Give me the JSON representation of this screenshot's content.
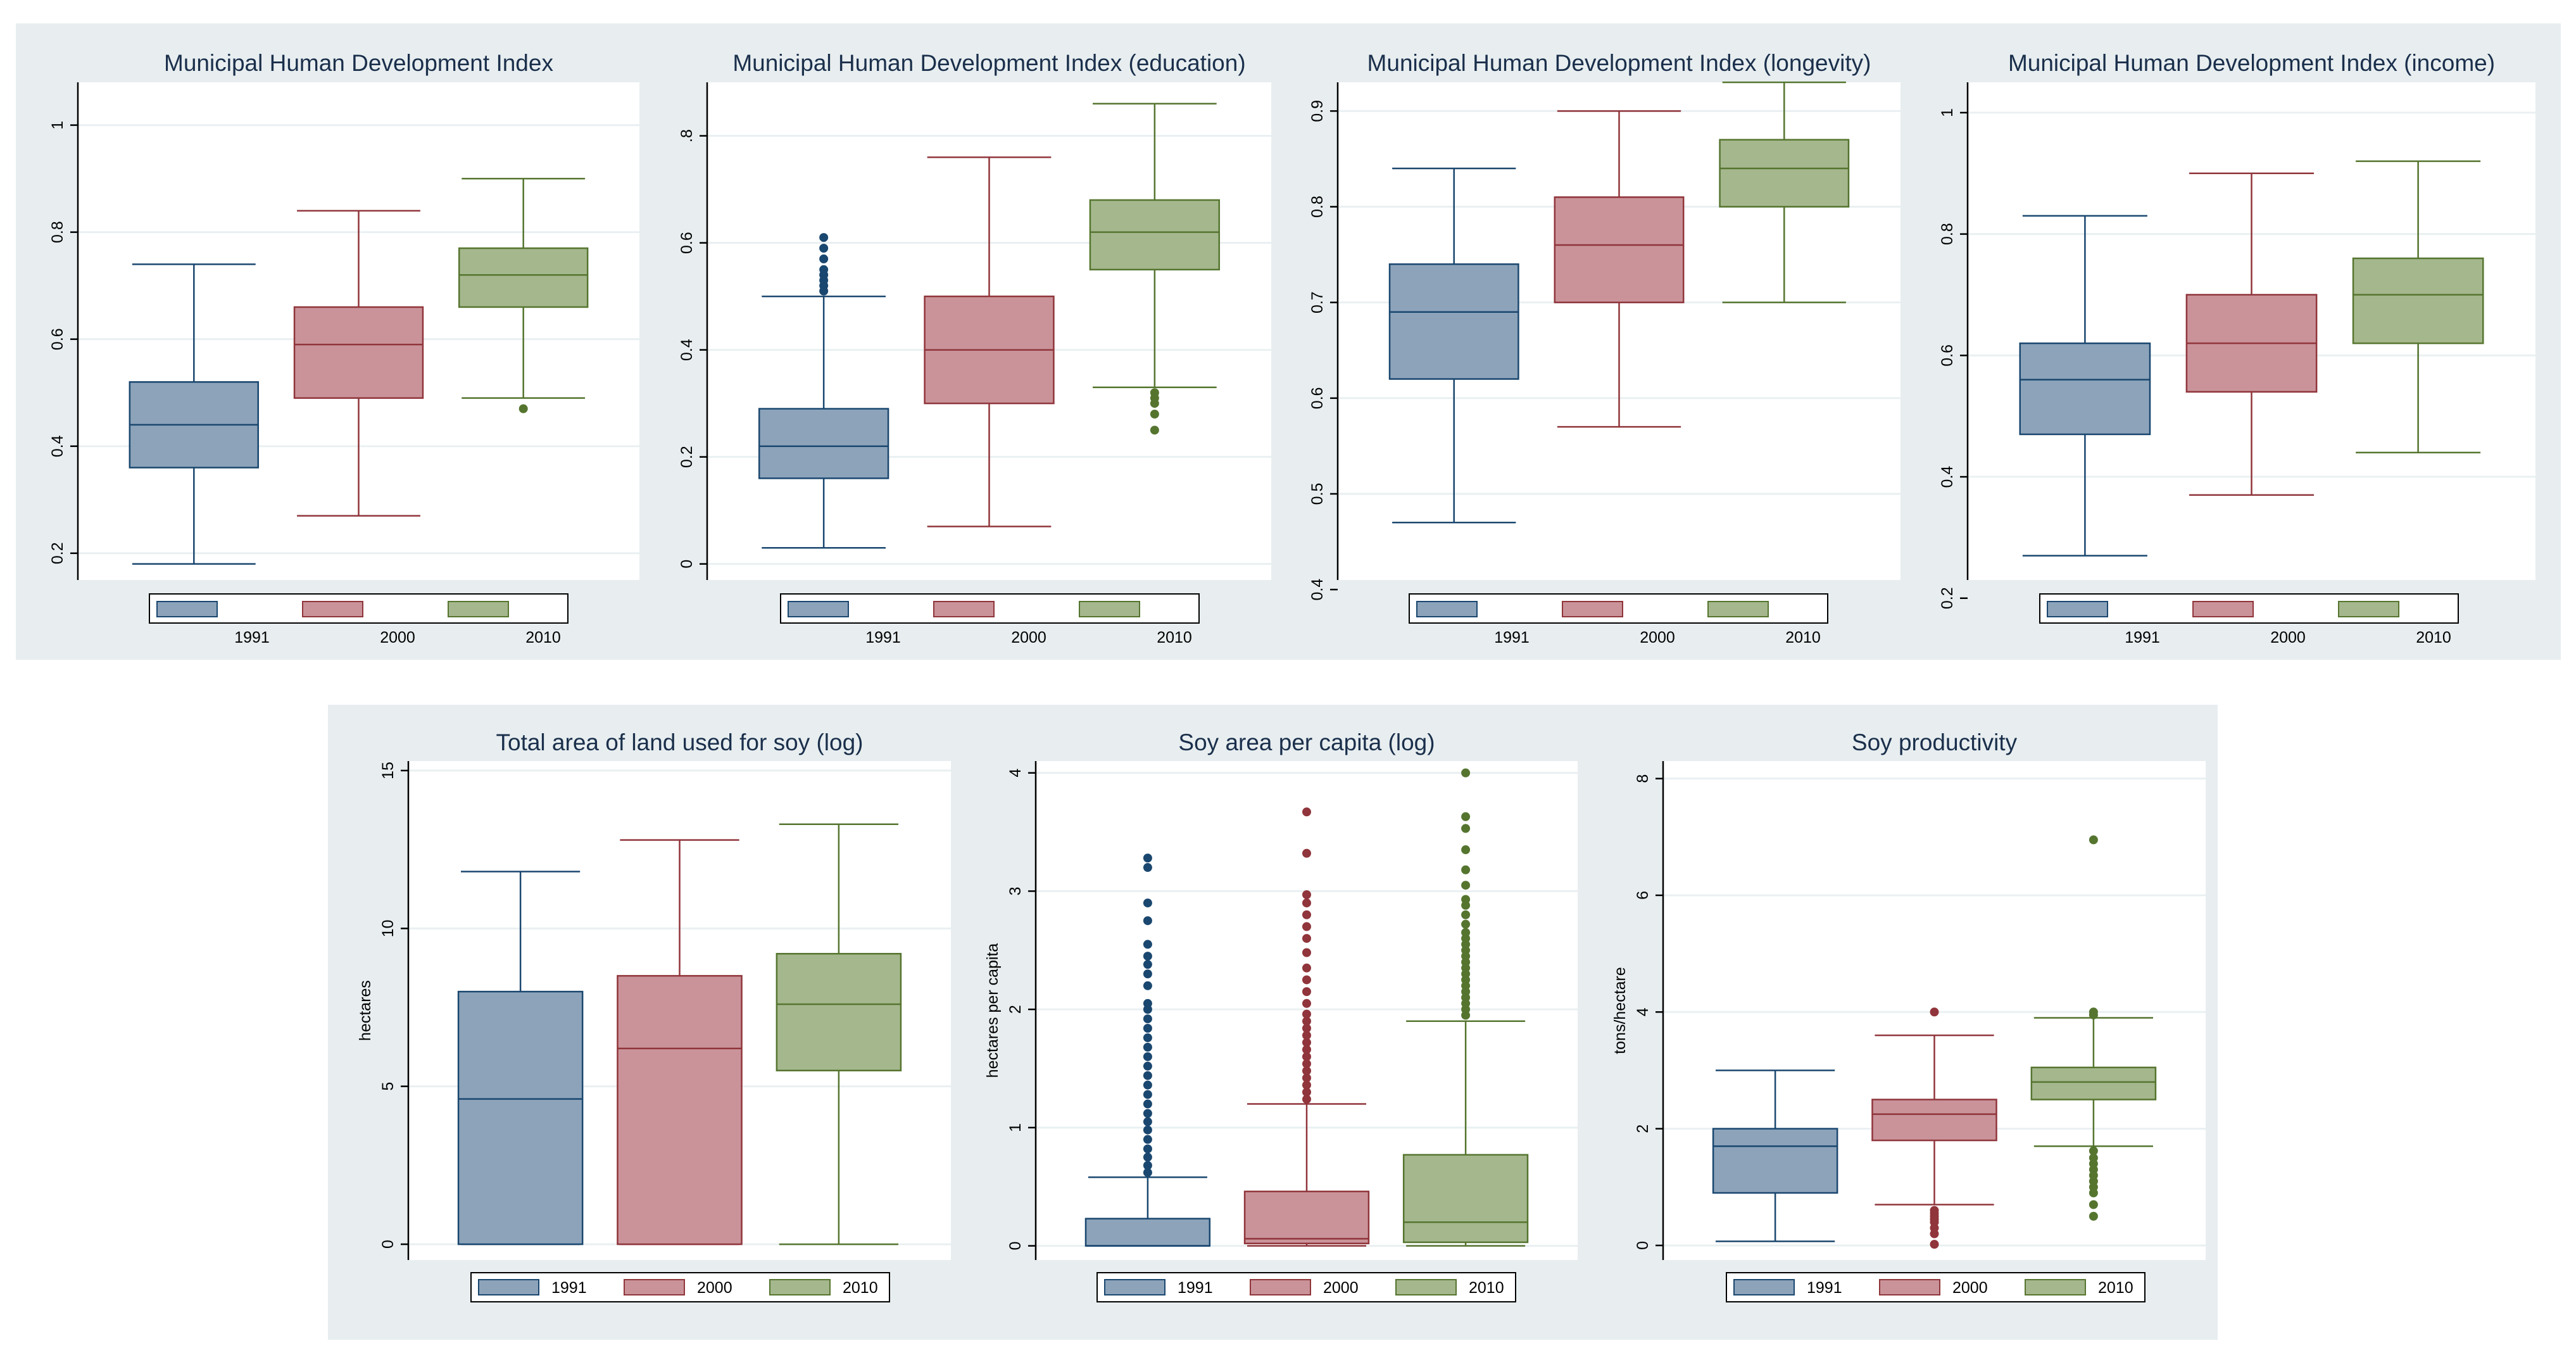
{
  "colors": {
    "panel_bg": "#e8eef0",
    "plot_bg": "#ffffff",
    "grid": "#eaf0f2",
    "axis": "#000000",
    "title": "#1a2f4b",
    "y1991_fill": "#8ca3ba",
    "y1991_line": "#1a476f",
    "y2000_fill": "#c99399",
    "y2000_line": "#90353b",
    "y2010_fill": "#a5b78d",
    "y2010_line": "#55752f"
  },
  "legend_labels": [
    "1991",
    "2000",
    "2010"
  ],
  "chart_data": [
    {
      "type": "box",
      "title": "Municipal Human Development Index",
      "ylabel": "",
      "ylim": [
        0.15,
        1.08
      ],
      "yticks": [
        "0.2",
        "0.4",
        "0.6",
        "0.8",
        "1"
      ],
      "ytick_values": [
        0.2,
        0.4,
        0.6,
        0.8,
        1
      ],
      "rotate_ticks": true,
      "legend_style": "below",
      "series": [
        {
          "name": "1991",
          "whisker_low": 0.18,
          "q1": 0.36,
          "median": 0.44,
          "q3": 0.52,
          "whisker_high": 0.74,
          "outliers": []
        },
        {
          "name": "2000",
          "whisker_low": 0.27,
          "q1": 0.49,
          "median": 0.59,
          "q3": 0.66,
          "whisker_high": 0.84,
          "outliers": []
        },
        {
          "name": "2010",
          "whisker_low": 0.49,
          "q1": 0.66,
          "median": 0.72,
          "q3": 0.77,
          "whisker_high": 0.9,
          "outliers": [
            0.47
          ]
        }
      ]
    },
    {
      "type": "box",
      "title": "Municipal Human Development Index (education)",
      "ylabel": "",
      "ylim": [
        -0.03,
        0.9
      ],
      "yticks": [
        "0",
        "0.2",
        "0.4",
        "0.6",
        ".8"
      ],
      "ytick_values": [
        0,
        0.2,
        0.4,
        0.6,
        0.8
      ],
      "rotate_ticks": true,
      "legend_style": "below",
      "series": [
        {
          "name": "1991",
          "whisker_low": 0.03,
          "q1": 0.16,
          "median": 0.22,
          "q3": 0.29,
          "whisker_high": 0.5,
          "outliers": [
            0.51,
            0.52,
            0.53,
            0.54,
            0.55,
            0.57,
            0.59,
            0.61
          ]
        },
        {
          "name": "2000",
          "whisker_low": 0.07,
          "q1": 0.3,
          "median": 0.4,
          "q3": 0.5,
          "whisker_high": 0.76,
          "outliers": []
        },
        {
          "name": "2010",
          "whisker_low": 0.33,
          "q1": 0.55,
          "median": 0.62,
          "q3": 0.68,
          "whisker_high": 0.86,
          "outliers": [
            0.32,
            0.31,
            0.3,
            0.28,
            0.25
          ]
        }
      ]
    },
    {
      "type": "box",
      "title": "Municipal Human Development Index (longevity)",
      "ylabel": "",
      "ylim": [
        0.41,
        0.93
      ],
      "yticks": [
        "0.4",
        "0.5",
        "0.6",
        "0.7",
        "0.8",
        "0.9"
      ],
      "ytick_values": [
        0.4,
        0.5,
        0.6,
        0.7,
        0.8,
        0.9
      ],
      "rotate_ticks": true,
      "legend_style": "below",
      "series": [
        {
          "name": "1991",
          "whisker_low": 0.47,
          "q1": 0.62,
          "median": 0.69,
          "q3": 0.74,
          "whisker_high": 0.84,
          "outliers": []
        },
        {
          "name": "2000",
          "whisker_low": 0.57,
          "q1": 0.7,
          "median": 0.76,
          "q3": 0.81,
          "whisker_high": 0.9,
          "outliers": []
        },
        {
          "name": "2010",
          "whisker_low": 0.7,
          "q1": 0.8,
          "median": 0.84,
          "q3": 0.87,
          "whisker_high": 0.93,
          "outliers": []
        }
      ]
    },
    {
      "type": "box",
      "title": "Municipal Human Development Index (income)",
      "ylabel": "",
      "ylim": [
        0.23,
        1.05
      ],
      "yticks": [
        "0.2",
        "0.4",
        "0.6",
        "0.8",
        "1"
      ],
      "ytick_values": [
        0.2,
        0.4,
        0.6,
        0.8,
        1
      ],
      "rotate_ticks": true,
      "legend_style": "below",
      "series": [
        {
          "name": "1991",
          "whisker_low": 0.27,
          "q1": 0.47,
          "median": 0.56,
          "q3": 0.62,
          "whisker_high": 0.83,
          "outliers": []
        },
        {
          "name": "2000",
          "whisker_low": 0.37,
          "q1": 0.54,
          "median": 0.62,
          "q3": 0.7,
          "whisker_high": 0.9,
          "outliers": []
        },
        {
          "name": "2010",
          "whisker_low": 0.44,
          "q1": 0.62,
          "median": 0.7,
          "q3": 0.76,
          "whisker_high": 0.92,
          "outliers": []
        }
      ]
    },
    {
      "type": "box",
      "title": "Total area of land used for soy (log)",
      "ylabel": "hectares",
      "ylim": [
        -0.5,
        15.3
      ],
      "yticks": [
        "0",
        "5",
        "10",
        "15"
      ],
      "ytick_values": [
        0,
        5,
        10,
        15
      ],
      "rotate_ticks": true,
      "legend_style": "inline",
      "series": [
        {
          "name": "1991",
          "whisker_low": 0,
          "q1": 0,
          "median": 4.6,
          "q3": 8.0,
          "whisker_high": 11.8,
          "outliers": []
        },
        {
          "name": "2000",
          "whisker_low": 0,
          "q1": 0,
          "median": 6.2,
          "q3": 8.5,
          "whisker_high": 12.8,
          "outliers": []
        },
        {
          "name": "2010",
          "whisker_low": 0,
          "q1": 5.5,
          "median": 7.6,
          "q3": 9.2,
          "whisker_high": 13.3,
          "outliers": []
        }
      ]
    },
    {
      "type": "box",
      "title": "Soy area per capita (log)",
      "ylabel": "hectares per capita",
      "ylim": [
        -0.12,
        4.1
      ],
      "yticks": [
        "0",
        "1",
        "2",
        "3",
        "4"
      ],
      "ytick_values": [
        0,
        1,
        2,
        3,
        4
      ],
      "rotate_ticks": true,
      "legend_style": "inline",
      "series": [
        {
          "name": "1991",
          "whisker_low": 0,
          "q1": 0,
          "median": 0,
          "q3": 0.23,
          "whisker_high": 0.58,
          "outliers": [
            0.62,
            0.68,
            0.75,
            0.82,
            0.9,
            0.98,
            1.05,
            1.12,
            1.2,
            1.28,
            1.36,
            1.44,
            1.52,
            1.6,
            1.68,
            1.76,
            1.84,
            1.92,
            2.0,
            2.05,
            2.2,
            2.3,
            2.38,
            2.45,
            2.55,
            2.75,
            2.9,
            3.2,
            3.28
          ]
        },
        {
          "name": "2000",
          "whisker_low": 0,
          "q1": 0.02,
          "median": 0.06,
          "q3": 0.46,
          "whisker_high": 1.2,
          "outliers": [
            1.24,
            1.3,
            1.36,
            1.42,
            1.48,
            1.54,
            1.6,
            1.66,
            1.72,
            1.78,
            1.84,
            1.9,
            1.96,
            2.05,
            2.15,
            2.25,
            2.35,
            2.48,
            2.6,
            2.7,
            2.8,
            2.9,
            2.97,
            3.32,
            3.67
          ]
        },
        {
          "name": "2010",
          "whisker_low": 0,
          "q1": 0.03,
          "median": 0.2,
          "q3": 0.77,
          "whisker_high": 1.9,
          "outliers": [
            1.95,
            2.0,
            2.05,
            2.1,
            2.15,
            2.2,
            2.25,
            2.3,
            2.35,
            2.4,
            2.45,
            2.5,
            2.55,
            2.6,
            2.65,
            2.72,
            2.8,
            2.88,
            2.93,
            3.05,
            3.18,
            3.35,
            3.53,
            3.63,
            4.0
          ]
        }
      ]
    },
    {
      "type": "box",
      "title": "Soy productivity",
      "ylabel": "tons/hectare",
      "ylim": [
        -0.25,
        8.3
      ],
      "yticks": [
        "0",
        "2",
        "4",
        "6",
        "8"
      ],
      "ytick_values": [
        0,
        2,
        4,
        6,
        8
      ],
      "rotate_ticks": true,
      "legend_style": "inline",
      "series": [
        {
          "name": "1991",
          "whisker_low": 0.07,
          "q1": 0.9,
          "median": 1.7,
          "q3": 2.0,
          "whisker_high": 3.0,
          "outliers": []
        },
        {
          "name": "2000",
          "whisker_low": 0.7,
          "q1": 1.8,
          "median": 2.25,
          "q3": 2.5,
          "whisker_high": 3.6,
          "outliers": [
            0.6,
            0.55,
            0.5,
            0.45,
            0.4,
            0.3,
            0.2,
            0.02,
            4.0
          ]
        },
        {
          "name": "2010",
          "whisker_low": 1.7,
          "q1": 2.5,
          "median": 2.8,
          "q3": 3.05,
          "whisker_high": 3.9,
          "outliers": [
            1.62,
            1.5,
            1.4,
            1.3,
            1.2,
            1.1,
            1.0,
            0.9,
            0.7,
            0.5,
            3.95,
            4.0,
            6.95
          ]
        }
      ]
    }
  ]
}
